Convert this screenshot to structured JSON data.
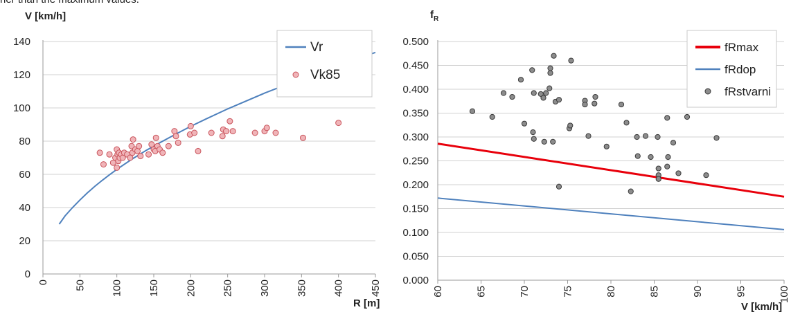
{
  "caption_fragment": "her than the maximum values.",
  "chart_data": [
    {
      "type": "scatter",
      "ylabel": "V [km/h]",
      "xlabel": "R [m]",
      "xlim": [
        0,
        450
      ],
      "ylim": [
        0,
        140
      ],
      "x_ticks": [
        "0",
        "50",
        "100",
        "150",
        "200",
        "250",
        "300",
        "350",
        "400",
        "450"
      ],
      "y_ticks": [
        "0",
        "20",
        "40",
        "60",
        "80",
        "100",
        "120",
        "140"
      ],
      "grid": "horizontal",
      "legend_position": "top-right",
      "legend": [
        "Vr",
        "Vk85"
      ],
      "series": [
        {
          "name": "Vr",
          "kind": "line",
          "color": "#4f81bd",
          "points": [
            [
              22,
              30
            ],
            [
              30,
              35
            ],
            [
              40,
              40
            ],
            [
              50,
              44.5
            ],
            [
              60,
              48.8
            ],
            [
              70,
              52.7
            ],
            [
              80,
              56.3
            ],
            [
              90,
              59.7
            ],
            [
              100,
              63
            ],
            [
              120,
              69
            ],
            [
              140,
              74.5
            ],
            [
              160,
              79.5
            ],
            [
              180,
              84.3
            ],
            [
              200,
              88.9
            ],
            [
              220,
              93.2
            ],
            [
              250,
              99.4
            ],
            [
              300,
              108.9
            ],
            [
              350,
              117.6
            ],
            [
              400,
              125.8
            ],
            [
              450,
              133.4
            ]
          ]
        },
        {
          "name": "Vk85",
          "kind": "scatter",
          "color": "#e6959a",
          "points": [
            [
              77,
              73
            ],
            [
              82,
              66
            ],
            [
              90,
              72
            ],
            [
              95,
              67
            ],
            [
              98,
              70
            ],
            [
              100,
              75
            ],
            [
              100,
              64
            ],
            [
              101,
              72
            ],
            [
              102,
              68
            ],
            [
              103,
              73
            ],
            [
              104,
              70
            ],
            [
              106,
              72
            ],
            [
              108,
              70
            ],
            [
              110,
              73
            ],
            [
              114,
              72
            ],
            [
              118,
              70
            ],
            [
              120,
              77
            ],
            [
              121,
              73
            ],
            [
              122,
              81
            ],
            [
              125,
              75
            ],
            [
              128,
              74
            ],
            [
              130,
              77
            ],
            [
              132,
              71
            ],
            [
              143,
              72
            ],
            [
              147,
              78
            ],
            [
              150,
              75
            ],
            [
              152,
              74
            ],
            [
              153,
              82
            ],
            [
              155,
              77
            ],
            [
              158,
              75
            ],
            [
              162,
              73
            ],
            [
              170,
              77
            ],
            [
              178,
              86
            ],
            [
              180,
              83
            ],
            [
              183,
              79
            ],
            [
              199,
              84
            ],
            [
              200,
              89
            ],
            [
              205,
              85
            ],
            [
              210,
              74
            ],
            [
              228,
              85
            ],
            [
              243,
              83
            ],
            [
              244,
              87
            ],
            [
              248,
              86
            ],
            [
              253,
              92
            ],
            [
              257,
              86
            ],
            [
              287,
              85
            ],
            [
              300,
              86
            ],
            [
              303,
              88
            ],
            [
              315,
              85
            ],
            [
              352,
              82
            ],
            [
              400,
              91
            ]
          ]
        }
      ]
    },
    {
      "type": "scatter",
      "ylabel": "f",
      "ylabel_sub": "R",
      "xlabel": "V [km/h]",
      "xlim": [
        60,
        100
      ],
      "ylim": [
        0,
        0.5
      ],
      "x_ticks": [
        "60",
        "65",
        "70",
        "75",
        "80",
        "85",
        "90",
        "95",
        "100"
      ],
      "y_ticks": [
        "0.000",
        "0.050",
        "0.100",
        "0.150",
        "0.200",
        "0.250",
        "0.300",
        "0.350",
        "0.400",
        "0.450",
        "0.500"
      ],
      "grid": "horizontal",
      "legend_position": "top-right",
      "legend": [
        "fRmax",
        "fRdop",
        "fRstvarni"
      ],
      "series": [
        {
          "name": "fRmax",
          "kind": "line",
          "color": "#e8000b",
          "points": [
            [
              60,
              0.286
            ],
            [
              100,
              0.175
            ]
          ]
        },
        {
          "name": "fRdop",
          "kind": "line",
          "color": "#4f81bd",
          "points": [
            [
              60,
              0.172
            ],
            [
              100,
              0.106
            ]
          ]
        },
        {
          "name": "fRstvarni",
          "kind": "scatter",
          "color": "#7f7f7f",
          "points": [
            [
              64,
              0.354
            ],
            [
              66.3,
              0.342
            ],
            [
              67.6,
              0.392
            ],
            [
              68.6,
              0.384
            ],
            [
              69.6,
              0.42
            ],
            [
              70,
              0.328
            ],
            [
              70.9,
              0.44
            ],
            [
              71,
              0.31
            ],
            [
              71.1,
              0.296
            ],
            [
              71.1,
              0.392
            ],
            [
              71.9,
              0.39
            ],
            [
              72.2,
              0.382
            ],
            [
              72.3,
              0.29
            ],
            [
              72.5,
              0.392
            ],
            [
              72.9,
              0.402
            ],
            [
              73,
              0.434
            ],
            [
              73,
              0.444
            ],
            [
              73.3,
              0.29
            ],
            [
              73.4,
              0.47
            ],
            [
              73.6,
              0.374
            ],
            [
              74,
              0.196
            ],
            [
              74,
              0.378
            ],
            [
              75.2,
              0.318
            ],
            [
              75.3,
              0.324
            ],
            [
              75.4,
              0.46
            ],
            [
              77,
              0.376
            ],
            [
              77,
              0.368
            ],
            [
              77.4,
              0.302
            ],
            [
              78.1,
              0.37
            ],
            [
              78.2,
              0.384
            ],
            [
              79.5,
              0.28
            ],
            [
              81.2,
              0.368
            ],
            [
              81.8,
              0.33
            ],
            [
              82.3,
              0.186
            ],
            [
              83,
              0.3
            ],
            [
              83.1,
              0.26
            ],
            [
              84,
              0.302
            ],
            [
              84.6,
              0.258
            ],
            [
              85.4,
              0.3
            ],
            [
              85.5,
              0.234
            ],
            [
              85.5,
              0.22
            ],
            [
              85.5,
              0.212
            ],
            [
              86.5,
              0.34
            ],
            [
              86.5,
              0.238
            ],
            [
              86.6,
              0.258
            ],
            [
              87.2,
              0.288
            ],
            [
              87.8,
              0.224
            ],
            [
              88.8,
              0.342
            ],
            [
              91,
              0.22
            ],
            [
              92.2,
              0.298
            ]
          ]
        }
      ]
    }
  ]
}
